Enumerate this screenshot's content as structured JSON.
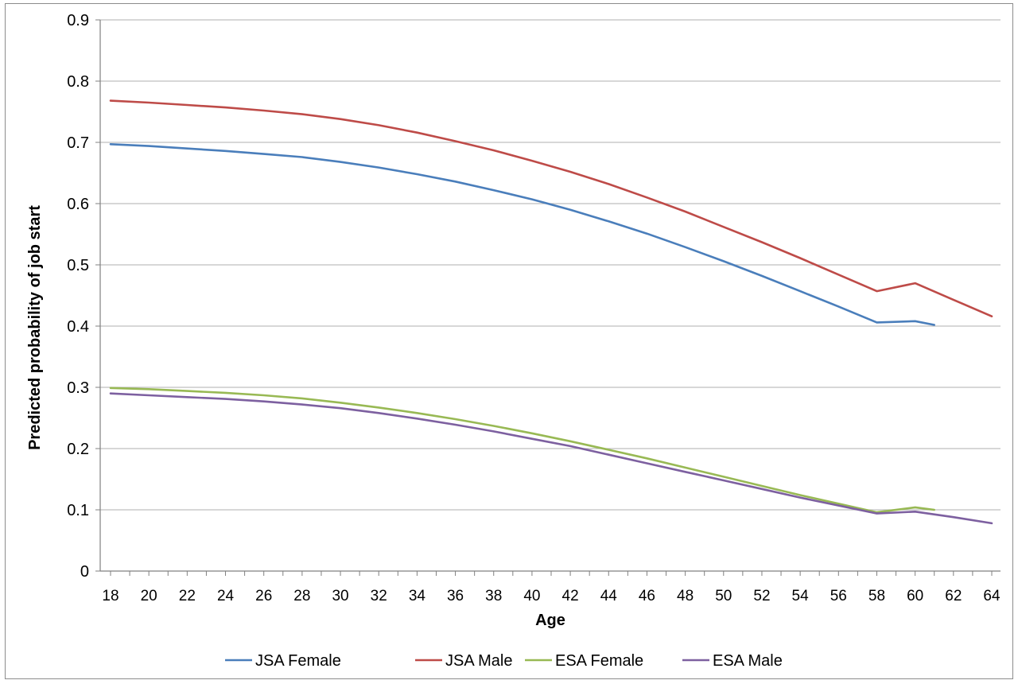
{
  "chart_data": {
    "type": "line",
    "title": "",
    "xlabel": "Age",
    "ylabel": "Predicted probability of job start",
    "xlim": [
      18,
      64
    ],
    "ylim": [
      0,
      0.9
    ],
    "x_ticks": [
      "18",
      "20",
      "22",
      "24",
      "26",
      "28",
      "30",
      "32",
      "34",
      "36",
      "38",
      "40",
      "42",
      "44",
      "46",
      "48",
      "50",
      "52",
      "54",
      "56",
      "58",
      "60",
      "62",
      "64"
    ],
    "y_ticks": [
      "0",
      "0.1",
      "0.2",
      "0.3",
      "0.4",
      "0.5",
      "0.6",
      "0.7",
      "0.8",
      "0.9"
    ],
    "grid": "horizontal",
    "legend_position": "bottom",
    "series": [
      {
        "name": "JSA Female",
        "color": "#4a7ebb",
        "x": [
          18,
          20,
          22,
          24,
          26,
          28,
          30,
          32,
          34,
          36,
          38,
          40,
          42,
          44,
          46,
          48,
          50,
          52,
          54,
          56,
          58,
          60,
          61
        ],
        "values": [
          0.697,
          0.694,
          0.69,
          0.686,
          0.681,
          0.676,
          0.668,
          0.659,
          0.648,
          0.636,
          0.622,
          0.607,
          0.59,
          0.571,
          0.551,
          0.529,
          0.506,
          0.482,
          0.457,
          0.432,
          0.406,
          0.408,
          0.402
        ]
      },
      {
        "name": "JSA Male",
        "color": "#be4b48",
        "x": [
          18,
          20,
          22,
          24,
          26,
          28,
          30,
          32,
          34,
          36,
          38,
          40,
          42,
          44,
          46,
          48,
          50,
          52,
          54,
          56,
          58,
          60,
          62,
          64
        ],
        "values": [
          0.768,
          0.765,
          0.761,
          0.757,
          0.752,
          0.746,
          0.738,
          0.728,
          0.716,
          0.702,
          0.687,
          0.67,
          0.652,
          0.632,
          0.61,
          0.587,
          0.562,
          0.537,
          0.511,
          0.484,
          0.457,
          0.47,
          0.443,
          0.416
        ]
      },
      {
        "name": "ESA Female",
        "color": "#98b954",
        "x": [
          18,
          20,
          22,
          24,
          26,
          28,
          30,
          32,
          34,
          36,
          38,
          40,
          42,
          44,
          46,
          48,
          50,
          52,
          54,
          56,
          58,
          60,
          61
        ],
        "values": [
          0.299,
          0.297,
          0.294,
          0.291,
          0.287,
          0.282,
          0.275,
          0.267,
          0.258,
          0.248,
          0.237,
          0.225,
          0.212,
          0.198,
          0.184,
          0.169,
          0.154,
          0.139,
          0.124,
          0.11,
          0.096,
          0.104,
          0.1
        ]
      },
      {
        "name": "ESA Male",
        "color": "#7d60a0",
        "x": [
          18,
          20,
          22,
          24,
          26,
          28,
          30,
          32,
          34,
          36,
          38,
          40,
          42,
          44,
          46,
          48,
          50,
          52,
          54,
          56,
          58,
          60,
          62,
          64
        ],
        "values": [
          0.29,
          0.287,
          0.284,
          0.281,
          0.277,
          0.272,
          0.266,
          0.258,
          0.249,
          0.239,
          0.228,
          0.216,
          0.204,
          0.19,
          0.176,
          0.162,
          0.148,
          0.134,
          0.12,
          0.107,
          0.094,
          0.097,
          0.088,
          0.078
        ]
      }
    ]
  }
}
